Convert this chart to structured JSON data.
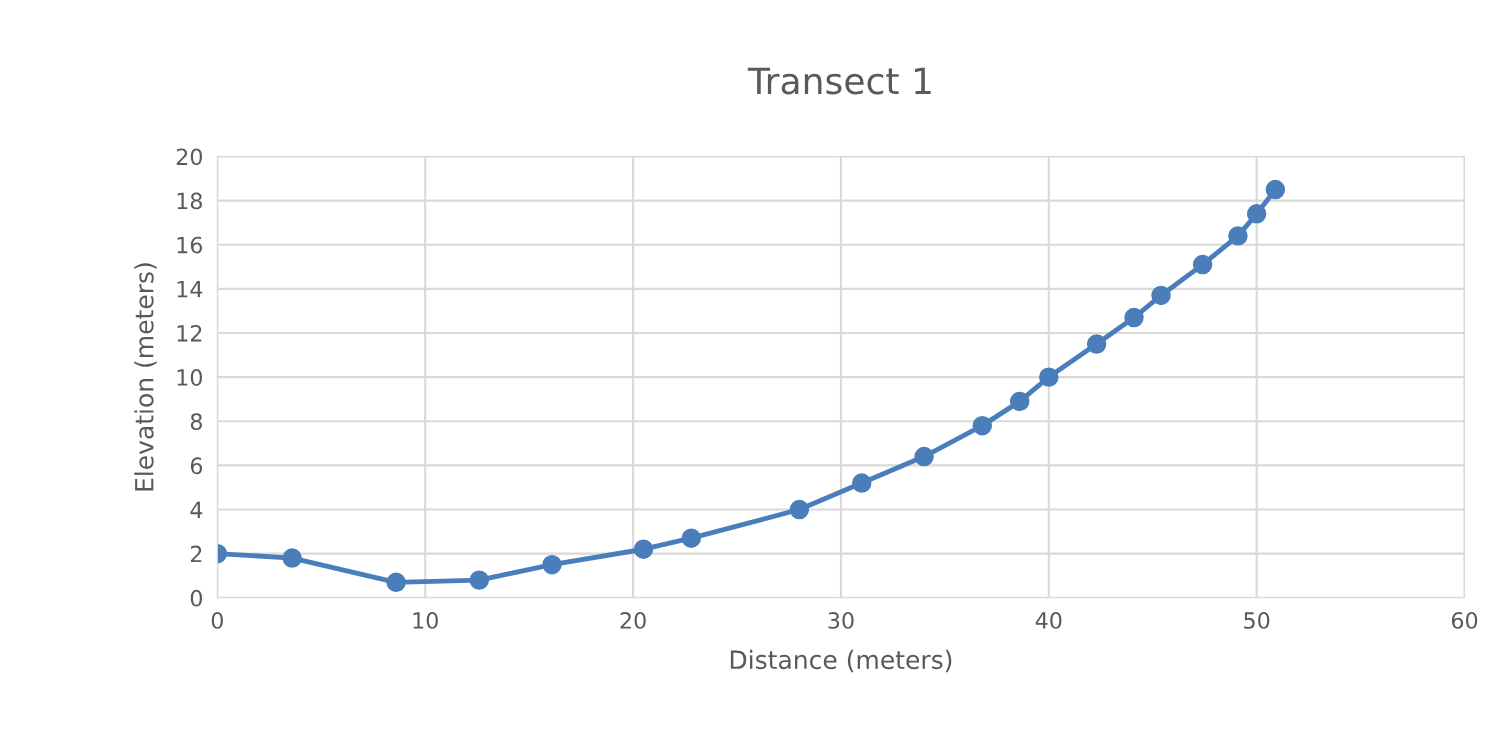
{
  "chart_data": {
    "type": "line",
    "title": "Transect 1",
    "xlabel": "Distance (meters)",
    "ylabel": "Elevation (meters)",
    "x": [
      0,
      3.6,
      8.6,
      12.6,
      16.1,
      20.5,
      22.8,
      28.0,
      31.0,
      34.0,
      36.8,
      38.6,
      40.0,
      42.3,
      44.1,
      45.4,
      47.4,
      49.1,
      50.0,
      50.9
    ],
    "series": [
      {
        "color": "#4a7ebb",
        "values": [
          2.0,
          1.8,
          0.7,
          0.8,
          1.5,
          2.2,
          2.7,
          4.0,
          5.2,
          6.4,
          7.8,
          8.9,
          10.0,
          11.5,
          12.7,
          13.7,
          15.1,
          16.4,
          17.4,
          18.5
        ]
      }
    ],
    "xlim": [
      0,
      60
    ],
    "xticks": [
      0,
      10,
      20,
      30,
      40,
      50,
      60
    ],
    "ylim": [
      0,
      20
    ],
    "yticks": [
      0,
      2,
      4,
      6,
      8,
      10,
      12,
      14,
      16,
      18,
      20
    ],
    "grid": true,
    "marker": "circle",
    "line_style": "solid"
  }
}
